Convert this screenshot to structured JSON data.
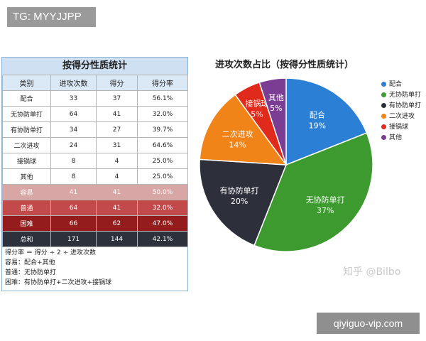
{
  "watermark_top": "TG: MYYJJPP",
  "watermark_bottom": "qiyiguo-vip.com",
  "zhihu_watermark": "知乎 @Bilbo",
  "chart_data": [
    {
      "type": "table",
      "title": "按得分性质统计",
      "columns": [
        "类别",
        "进攻次数",
        "得分",
        "得分率"
      ],
      "rows": [
        [
          "配合",
          "33",
          "37",
          "56.1%"
        ],
        [
          "无协防单打",
          "64",
          "41",
          "32.0%"
        ],
        [
          "有协防单打",
          "34",
          "27",
          "39.7%"
        ],
        [
          "二次进攻",
          "24",
          "31",
          "64.6%"
        ],
        [
          "接锅球",
          "8",
          "4",
          "25.0%"
        ],
        [
          "其他",
          "8",
          "4",
          "25.0%"
        ],
        [
          "容易",
          "41",
          "41",
          "50.0%"
        ],
        [
          "普通",
          "64",
          "41",
          "32.0%"
        ],
        [
          "困难",
          "66",
          "62",
          "47.0%"
        ],
        [
          "总和",
          "171",
          "144",
          "42.1%"
        ]
      ],
      "notes": [
        "得分率 ＝ 得分 ÷ 2 ÷ 进攻次数",
        "容易：配合+其他",
        "普通：无协防单打",
        "困难：有协防单打+二次进攻+接锅球"
      ],
      "highlight_colors": {
        "header": "#cfe0f2",
        "容易": "#d9a6a6",
        "普通": "#c24a4a",
        "困难": "#951c1c",
        "总和": "#2c313c"
      }
    },
    {
      "type": "pie",
      "title": "进攻次数占比（按得分性质统计）",
      "slices": [
        {
          "label": "配合",
          "percent": 19,
          "percent_text": "19%",
          "color": "#2b7fd4"
        },
        {
          "label": "无协防单打",
          "percent": 37,
          "percent_text": "37%",
          "color": "#3c9a2e"
        },
        {
          "label": "有协防单打",
          "percent": 20,
          "percent_text": "20%",
          "color": "#2d303b"
        },
        {
          "label": "二次进攻",
          "percent": 14,
          "percent_text": "14%",
          "color": "#f08418"
        },
        {
          "label": "接锅球",
          "percent": 5,
          "percent_text": "5%",
          "color": "#e02a1b"
        },
        {
          "label": "其他",
          "percent": 5,
          "percent_text": "5%",
          "color": "#7a3d93"
        }
      ],
      "legend": [
        "配合",
        "无协防单打",
        "有协防单打",
        "二次进攻",
        "接锅球",
        "其他"
      ],
      "legend_position": "right",
      "start_angle_deg": 0,
      "direction": "clockwise"
    }
  ]
}
